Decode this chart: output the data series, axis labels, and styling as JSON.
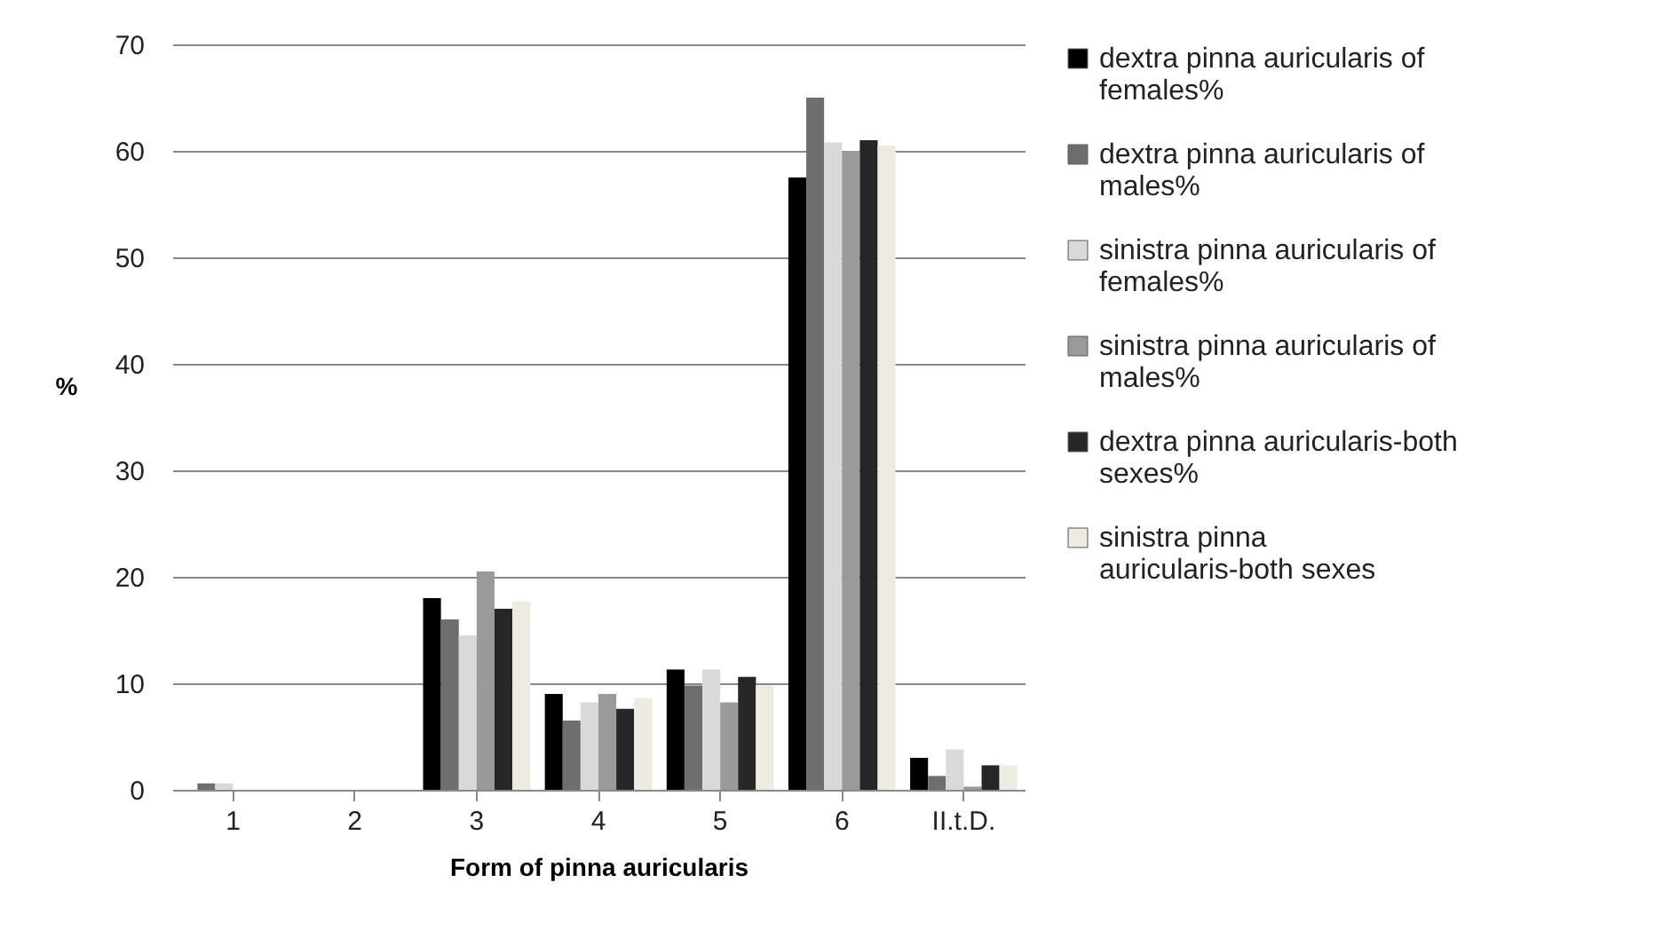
{
  "chart_data": {
    "type": "bar",
    "xlabel": "Form of pinna auricularis",
    "ylabel": "%",
    "categories": [
      "1",
      "2",
      "3",
      "4",
      "5",
      "6",
      "II.t.D."
    ],
    "series": [
      {
        "name": "dextra pinna auricularis of females%",
        "color": "#000000",
        "values": [
          0,
          0,
          18,
          9,
          11.3,
          57.5,
          3
        ]
      },
      {
        "name": "dextra pinna auricularis of males%",
        "color": "#6e6e6e",
        "values": [
          0.6,
          0,
          16,
          6.5,
          9.8,
          65,
          1.3
        ]
      },
      {
        "name": "sinistra pinna auricularis of females%",
        "color": "#d9d9d9",
        "values": [
          0.6,
          0,
          14.5,
          8.2,
          11.3,
          60.8,
          3.8
        ]
      },
      {
        "name": "sinistra pinna auricularis of males%",
        "color": "#9a9a9a",
        "values": [
          0,
          0,
          20.5,
          9,
          8.2,
          60,
          0.3
        ]
      },
      {
        "name": "dextra pinna auricularis-both sexes%",
        "color": "#262626",
        "values": [
          0,
          0,
          17,
          7.6,
          10.6,
          61,
          2.3
        ]
      },
      {
        "name": "sinistra pinna auricularis-both sexes",
        "color": "#eeece1",
        "values": [
          0,
          0,
          17.7,
          8.6,
          9.8,
          60.5,
          2.3
        ]
      }
    ],
    "ylim": [
      0,
      70
    ],
    "yticks": [
      0,
      10,
      20,
      30,
      40,
      50,
      60,
      70
    ],
    "grid": "y",
    "legend": "right"
  }
}
